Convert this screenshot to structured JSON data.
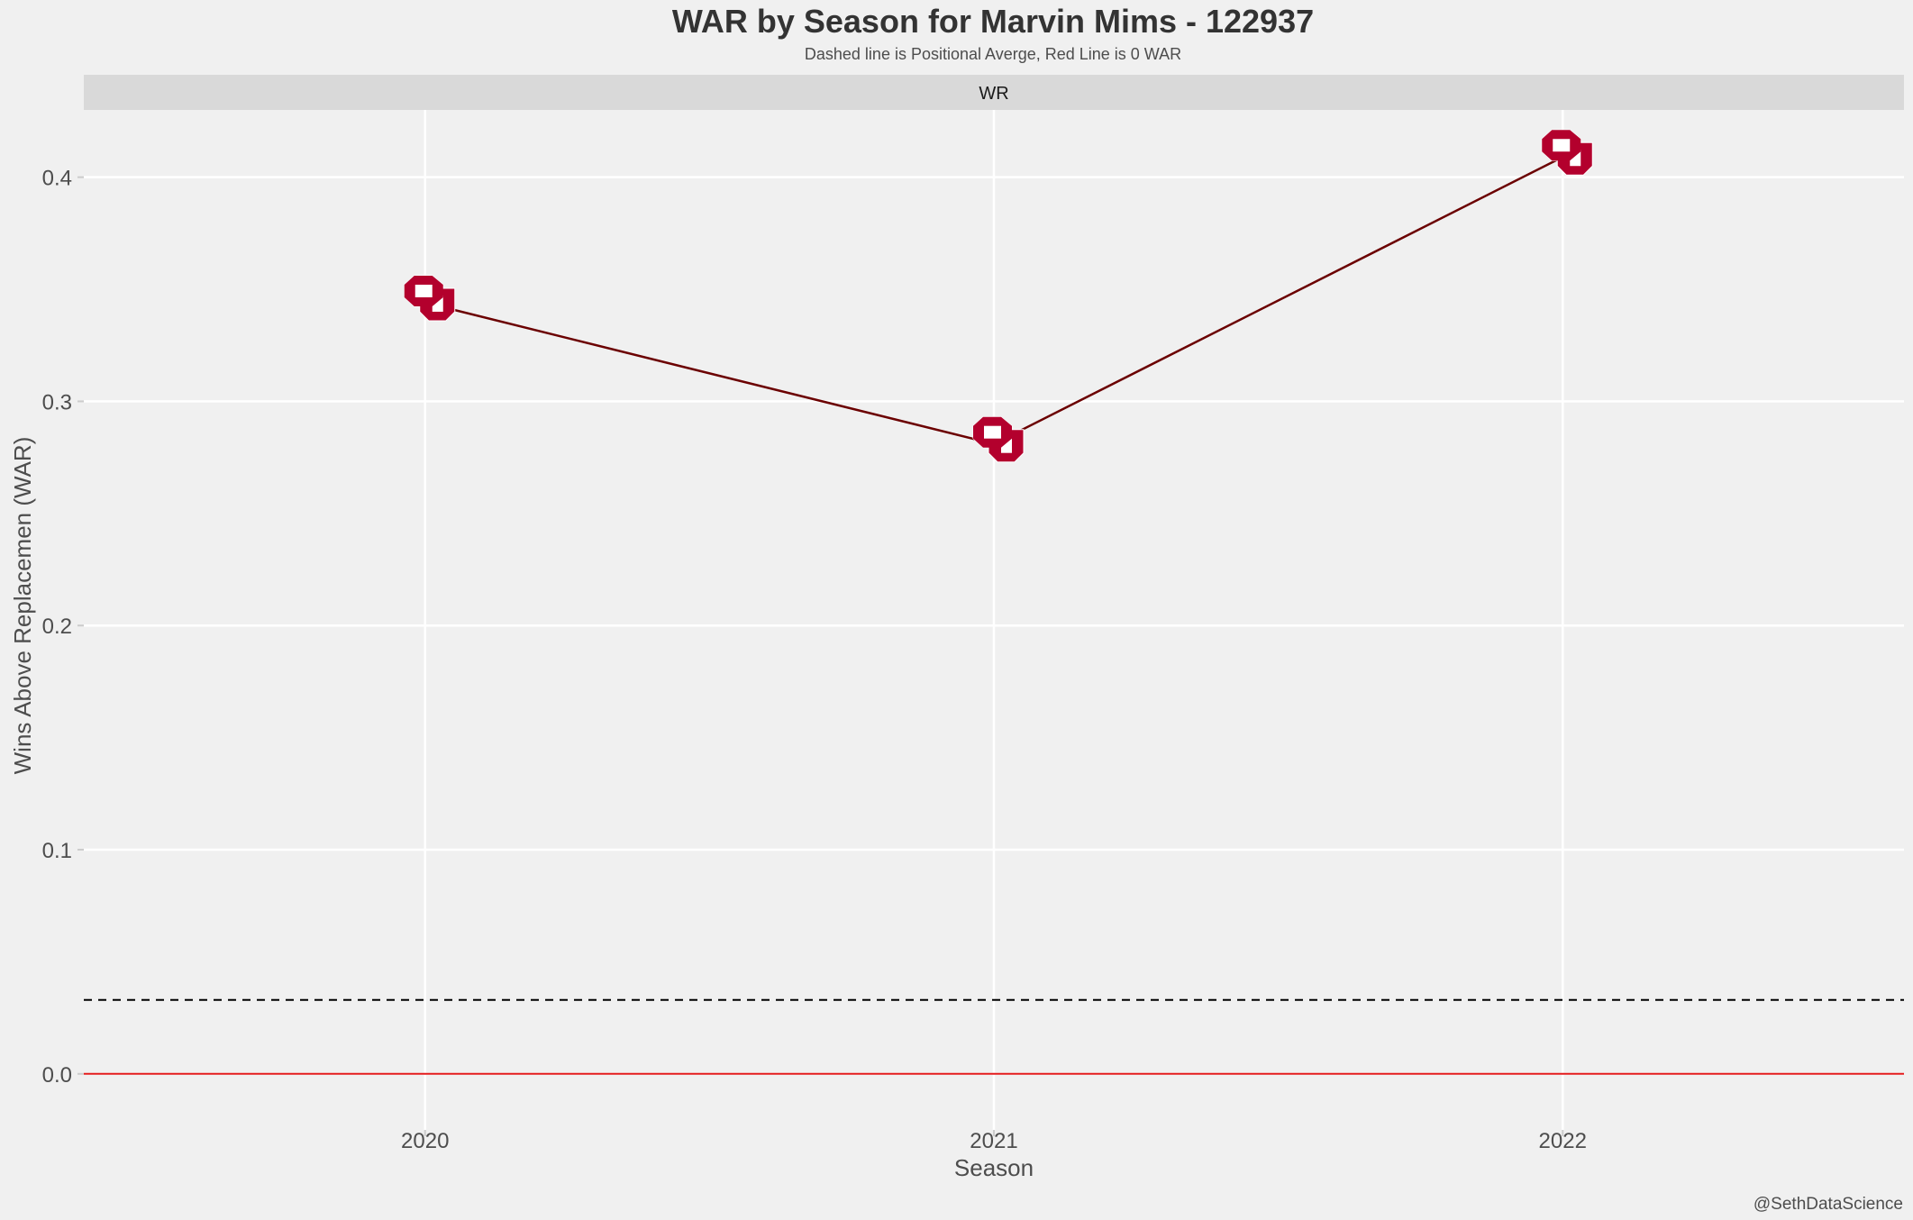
{
  "chart_data": {
    "type": "line",
    "title": "WAR by Season for Marvin Mims - 122937",
    "subtitle": "Dashed line is Positional Averge, Red Line is 0 WAR",
    "facet_label": "WR",
    "xlabel": "Season",
    "ylabel": "Wins Above Replacemen (WAR)",
    "caption": "@SethDataScience",
    "categories": [
      "2020",
      "2021",
      "2022"
    ],
    "x_tick_labels": [
      "2020",
      "2021",
      "2022"
    ],
    "series": [
      {
        "values": [
          0.344,
          0.281,
          0.409
        ]
      }
    ],
    "y_ticks": [
      0.0,
      0.1,
      0.2,
      0.3,
      0.4
    ],
    "y_tick_labels": [
      "0.0",
      "0.1",
      "0.2",
      "0.3",
      "0.4"
    ],
    "ylim": [
      -0.025,
      0.43
    ],
    "xlim": [
      0.4,
      3.6
    ],
    "reference_lines": [
      {
        "kind": "dashed",
        "value": 0.033,
        "color": "#000000"
      },
      {
        "kind": "solid",
        "value": 0.0,
        "color": "#e31a1c"
      }
    ],
    "grid": true,
    "line_color": "#6b0000",
    "marker_icon": "ou-logo-icon",
    "marker_color": "#b3002d",
    "background_color": "#f0f0f0",
    "strip_color": "#d9d9d9"
  }
}
